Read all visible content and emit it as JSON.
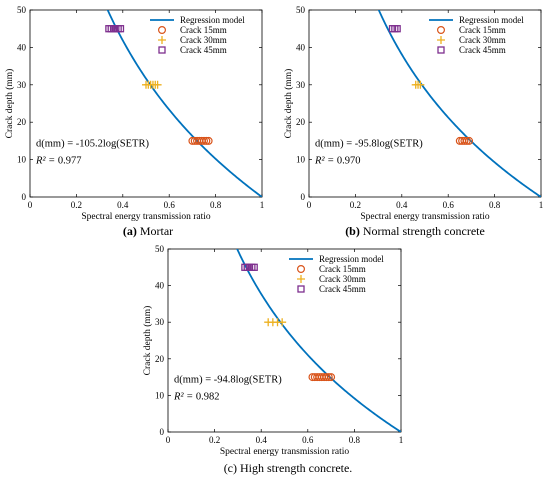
{
  "colors": {
    "regression": "#0072BD",
    "crack15": "#D95319",
    "crack30": "#EDB120",
    "crack45": "#7E2F8E"
  },
  "legend": {
    "regression": "Regression model",
    "crack15": "Crack 15mm",
    "crack30": "Crack 30mm",
    "crack45": "Crack 45mm"
  },
  "chart_data": [
    {
      "type": "scatter",
      "caption_letter": "(a)",
      "caption_text": "Mortar",
      "xlabel": "Spectral energy transmission ratio",
      "ylabel": "Crack depth (mm)",
      "xlim": [
        0,
        1
      ],
      "ylim": [
        0,
        50
      ],
      "xticks": [
        "0",
        "0.2",
        "0.4",
        "0.6",
        "0.8",
        "1"
      ],
      "yticks": [
        "0",
        "10",
        "20",
        "30",
        "40",
        "50"
      ],
      "model_coefficient": 105.2,
      "equation_lhs": "d(mm) = ",
      "equation": "-105.2log(SETR)",
      "r2_label": "R² = ",
      "r2": "0.977",
      "series": [
        {
          "name": "Crack 15mm",
          "marker": "circle",
          "x": [
            0.7,
            0.71,
            0.72,
            0.73,
            0.74,
            0.75,
            0.76,
            0.77
          ],
          "y": [
            15,
            15,
            15,
            15,
            15,
            15,
            15,
            15
          ]
        },
        {
          "name": "Crack 30mm",
          "marker": "plus",
          "x": [
            0.5,
            0.51,
            0.52,
            0.53,
            0.54,
            0.55
          ],
          "y": [
            30,
            30,
            30,
            30,
            30,
            30
          ]
        },
        {
          "name": "Crack 45mm",
          "marker": "square",
          "x": [
            0.34,
            0.35,
            0.36,
            0.37,
            0.38,
            0.39
          ],
          "y": [
            45,
            45,
            45,
            45,
            45,
            45
          ]
        }
      ]
    },
    {
      "type": "scatter",
      "caption_letter": "(b)",
      "caption_text": "Normal strength concrete",
      "xlabel": "Spectral energy transmission ratio",
      "ylabel": "Crack depth (mm)",
      "xlim": [
        0,
        1
      ],
      "ylim": [
        0,
        50
      ],
      "xticks": [
        "0",
        "0.2",
        "0.4",
        "0.6",
        "0.8",
        "1"
      ],
      "yticks": [
        "0",
        "10",
        "20",
        "30",
        "40",
        "50"
      ],
      "model_coefficient": 95.8,
      "equation_lhs": "d(mm) = ",
      "equation": "-95.8log(SETR)",
      "r2_label": "R² = ",
      "r2": "0.970",
      "series": [
        {
          "name": "Crack 15mm",
          "marker": "circle",
          "x": [
            0.65,
            0.66,
            0.67,
            0.68,
            0.69
          ],
          "y": [
            15,
            15,
            15,
            15,
            15
          ]
        },
        {
          "name": "Crack 30mm",
          "marker": "plus",
          "x": [
            0.46,
            0.47,
            0.48
          ],
          "y": [
            30,
            30,
            30
          ]
        },
        {
          "name": "Crack 45mm",
          "marker": "square",
          "x": [
            0.36,
            0.37,
            0.38
          ],
          "y": [
            45,
            45,
            45
          ]
        }
      ]
    },
    {
      "type": "scatter",
      "caption_letter": "",
      "caption_text": "(c) High strength concrete.",
      "xlabel": "Spectral energy transmission ratio",
      "ylabel": "Crack depth (mm)",
      "xlim": [
        0,
        1
      ],
      "ylim": [
        0,
        50
      ],
      "xticks": [
        "0",
        "0.2",
        "0.4",
        "0.6",
        "0.8",
        "1"
      ],
      "yticks": [
        "0",
        "10",
        "20",
        "30",
        "40",
        "50"
      ],
      "model_coefficient": 94.8,
      "equation_lhs": "d(mm) = ",
      "equation": "-94.8log(SETR)",
      "r2_label": "R² = ",
      "r2": "0.982",
      "series": [
        {
          "name": "Crack 15mm",
          "marker": "circle",
          "x": [
            0.62,
            0.63,
            0.64,
            0.65,
            0.66,
            0.67,
            0.68,
            0.69,
            0.7
          ],
          "y": [
            15,
            15,
            15,
            15,
            15,
            15,
            15,
            15,
            15
          ]
        },
        {
          "name": "Crack 30mm",
          "marker": "plus",
          "x": [
            0.43,
            0.45,
            0.47,
            0.49
          ],
          "y": [
            30,
            30,
            30,
            30
          ]
        },
        {
          "name": "Crack 45mm",
          "marker": "square",
          "x": [
            0.33,
            0.34,
            0.35,
            0.36,
            0.37
          ],
          "y": [
            45,
            45,
            45,
            45,
            45
          ]
        }
      ]
    }
  ]
}
